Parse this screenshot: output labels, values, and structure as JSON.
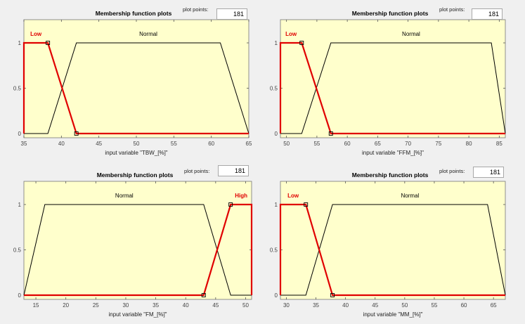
{
  "common": {
    "title": "Membership function plots",
    "plot_points_label": "plot points:",
    "colors": {
      "axes_background": "#ffffcc",
      "selected_mf": "#e00000",
      "mf_line": "#000000",
      "figure_background": "#f0f0f0"
    }
  },
  "panels": [
    {
      "id": "tbw",
      "plot_points_value": "181",
      "xlabel": "input variable \"TBW_[%]\"",
      "xticks": [
        "35",
        "40",
        "45",
        "50",
        "55",
        "60",
        "65"
      ],
      "yticks": [
        "0",
        "0.5",
        "1"
      ],
      "mfs": [
        {
          "label": "Low",
          "selected": true,
          "shape": "trapmf",
          "params": [
            35,
            35,
            38.2,
            42
          ]
        },
        {
          "label": "Normal",
          "selected": false,
          "shape": "trapmf",
          "params": [
            38.2,
            42,
            61.2,
            65
          ]
        }
      ]
    },
    {
      "id": "ffm",
      "plot_points_value": "181",
      "xlabel": "input variable \"FFM_[%]\"",
      "xticks": [
        "50",
        "55",
        "60",
        "65",
        "70",
        "75",
        "80",
        "85"
      ],
      "yticks": [
        "0",
        "0.5",
        "1"
      ],
      "mfs": [
        {
          "label": "Low",
          "selected": true,
          "shape": "trapmf",
          "params": [
            49,
            49,
            52.5,
            57.3
          ]
        },
        {
          "label": "Normal",
          "selected": false,
          "shape": "trapmf",
          "params": [
            52.5,
            57.3,
            83.7,
            86
          ]
        }
      ]
    },
    {
      "id": "fm",
      "plot_points_value": "181",
      "xlabel": "input variable \"FM_[%]\"",
      "xticks": [
        "15",
        "20",
        "25",
        "30",
        "35",
        "40",
        "45",
        "50"
      ],
      "yticks": [
        "0",
        "0.5",
        "1"
      ],
      "mfs": [
        {
          "label": "Normal",
          "selected": false,
          "shape": "trapmf",
          "params": [
            13,
            16.5,
            43,
            47.5
          ]
        },
        {
          "label": "High",
          "selected": true,
          "shape": "trapmf",
          "params": [
            43,
            47.5,
            51,
            51
          ]
        }
      ]
    },
    {
      "id": "mm",
      "plot_points_value": "181",
      "xlabel": "input variable \"MM_[%]\"",
      "xticks": [
        "30",
        "35",
        "40",
        "45",
        "50",
        "55",
        "60",
        "65"
      ],
      "yticks": [
        "0",
        "0.5",
        "1"
      ],
      "mfs": [
        {
          "label": "Low",
          "selected": true,
          "shape": "trapmf",
          "params": [
            29,
            29,
            33.3,
            37.8
          ]
        },
        {
          "label": "Normal",
          "selected": false,
          "shape": "trapmf",
          "params": [
            33.3,
            37.8,
            64,
            67
          ]
        }
      ]
    }
  ]
}
